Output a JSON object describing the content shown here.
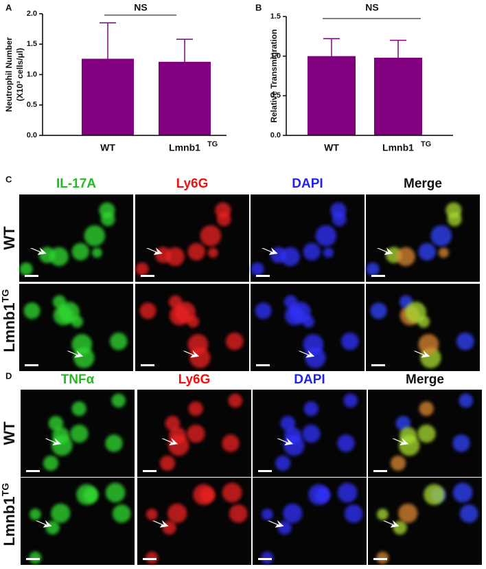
{
  "chart_data": [
    {
      "type": "bar",
      "label": "A",
      "ylabel": [
        "Neutrophil Number",
        "(X10³ cells/μl)"
      ],
      "categories": [
        "WT",
        "Lmnb1"
      ],
      "superscripts": [
        null,
        "TG"
      ],
      "values": [
        1.26,
        1.21
      ],
      "errors": [
        0.59,
        0.37
      ],
      "color": "#800080",
      "ylim": [
        0,
        2.0
      ],
      "yticks": [
        {
          "value": 0,
          "label": "0.0"
        },
        {
          "value": 0.5,
          "label": "0.5"
        },
        {
          "value": 1,
          "label": "1.0"
        },
        {
          "value": 1.5,
          "label": "1.5"
        },
        {
          "value": 2,
          "label": "2.0"
        }
      ],
      "annotation": "NS"
    },
    {
      "type": "bar",
      "label": "B",
      "ylabel": [
        "Relative Transmigration"
      ],
      "categories": [
        "WT",
        "Lmnb1"
      ],
      "superscripts": [
        null,
        "TG"
      ],
      "values": [
        1.0,
        0.98
      ],
      "errors": [
        0.22,
        0.22
      ],
      "color": "#800080",
      "ylim": [
        0,
        1.5
      ],
      "yticks": [
        {
          "value": 0,
          "label": "0.0"
        },
        {
          "value": 0.5,
          "label": "0.5"
        },
        {
          "value": 1,
          "label": "1.0"
        },
        {
          "value": 1.5,
          "label": "1.5"
        }
      ],
      "annotation": "NS"
    }
  ],
  "figure": {
    "panels": [
      {
        "label": "C",
        "columns": [
          {
            "name": "IL-17A",
            "color": "#22bb22"
          },
          {
            "name": "Ly6G",
            "color": "#ee1111"
          },
          {
            "name": "DAPI",
            "color": "#2222ee"
          },
          {
            "name": "Merge",
            "color": "#111111"
          }
        ],
        "rows": [
          {
            "name": "WT",
            "superscript": null
          },
          {
            "name": "Lmnb1",
            "superscript": "TG"
          }
        ]
      },
      {
        "label": "D",
        "columns": [
          {
            "name": "TNFα",
            "color": "#22bb22"
          },
          {
            "name": "Ly6G",
            "color": "#ee1111"
          },
          {
            "name": "DAPI",
            "color": "#2222ee"
          },
          {
            "name": "Merge",
            "color": "#111111"
          }
        ],
        "rows": [
          {
            "name": "WT",
            "superscript": null
          },
          {
            "name": "Lmnb1",
            "superscript": "TG"
          }
        ]
      }
    ]
  }
}
